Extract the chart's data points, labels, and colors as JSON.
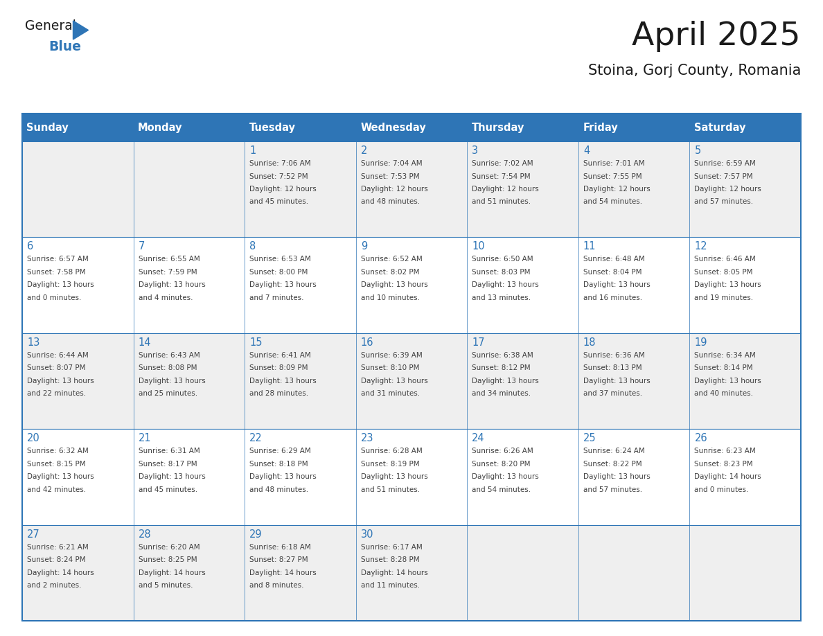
{
  "title": "April 2025",
  "subtitle": "Stoina, Gorj County, Romania",
  "header_bg": "#2E75B6",
  "header_text_color": "#FFFFFF",
  "row_bg_odd": "#EFEFEF",
  "row_bg_even": "#FFFFFF",
  "day_headers": [
    "Sunday",
    "Monday",
    "Tuesday",
    "Wednesday",
    "Thursday",
    "Friday",
    "Saturday"
  ],
  "cell_text_color": "#404040",
  "day_num_color": "#2E75B6",
  "grid_color": "#2E75B6",
  "weeks": [
    [
      {
        "day": "",
        "info": ""
      },
      {
        "day": "",
        "info": ""
      },
      {
        "day": "1",
        "info": "Sunrise: 7:06 AM\nSunset: 7:52 PM\nDaylight: 12 hours\nand 45 minutes."
      },
      {
        "day": "2",
        "info": "Sunrise: 7:04 AM\nSunset: 7:53 PM\nDaylight: 12 hours\nand 48 minutes."
      },
      {
        "day": "3",
        "info": "Sunrise: 7:02 AM\nSunset: 7:54 PM\nDaylight: 12 hours\nand 51 minutes."
      },
      {
        "day": "4",
        "info": "Sunrise: 7:01 AM\nSunset: 7:55 PM\nDaylight: 12 hours\nand 54 minutes."
      },
      {
        "day": "5",
        "info": "Sunrise: 6:59 AM\nSunset: 7:57 PM\nDaylight: 12 hours\nand 57 minutes."
      }
    ],
    [
      {
        "day": "6",
        "info": "Sunrise: 6:57 AM\nSunset: 7:58 PM\nDaylight: 13 hours\nand 0 minutes."
      },
      {
        "day": "7",
        "info": "Sunrise: 6:55 AM\nSunset: 7:59 PM\nDaylight: 13 hours\nand 4 minutes."
      },
      {
        "day": "8",
        "info": "Sunrise: 6:53 AM\nSunset: 8:00 PM\nDaylight: 13 hours\nand 7 minutes."
      },
      {
        "day": "9",
        "info": "Sunrise: 6:52 AM\nSunset: 8:02 PM\nDaylight: 13 hours\nand 10 minutes."
      },
      {
        "day": "10",
        "info": "Sunrise: 6:50 AM\nSunset: 8:03 PM\nDaylight: 13 hours\nand 13 minutes."
      },
      {
        "day": "11",
        "info": "Sunrise: 6:48 AM\nSunset: 8:04 PM\nDaylight: 13 hours\nand 16 minutes."
      },
      {
        "day": "12",
        "info": "Sunrise: 6:46 AM\nSunset: 8:05 PM\nDaylight: 13 hours\nand 19 minutes."
      }
    ],
    [
      {
        "day": "13",
        "info": "Sunrise: 6:44 AM\nSunset: 8:07 PM\nDaylight: 13 hours\nand 22 minutes."
      },
      {
        "day": "14",
        "info": "Sunrise: 6:43 AM\nSunset: 8:08 PM\nDaylight: 13 hours\nand 25 minutes."
      },
      {
        "day": "15",
        "info": "Sunrise: 6:41 AM\nSunset: 8:09 PM\nDaylight: 13 hours\nand 28 minutes."
      },
      {
        "day": "16",
        "info": "Sunrise: 6:39 AM\nSunset: 8:10 PM\nDaylight: 13 hours\nand 31 minutes."
      },
      {
        "day": "17",
        "info": "Sunrise: 6:38 AM\nSunset: 8:12 PM\nDaylight: 13 hours\nand 34 minutes."
      },
      {
        "day": "18",
        "info": "Sunrise: 6:36 AM\nSunset: 8:13 PM\nDaylight: 13 hours\nand 37 minutes."
      },
      {
        "day": "19",
        "info": "Sunrise: 6:34 AM\nSunset: 8:14 PM\nDaylight: 13 hours\nand 40 minutes."
      }
    ],
    [
      {
        "day": "20",
        "info": "Sunrise: 6:32 AM\nSunset: 8:15 PM\nDaylight: 13 hours\nand 42 minutes."
      },
      {
        "day": "21",
        "info": "Sunrise: 6:31 AM\nSunset: 8:17 PM\nDaylight: 13 hours\nand 45 minutes."
      },
      {
        "day": "22",
        "info": "Sunrise: 6:29 AM\nSunset: 8:18 PM\nDaylight: 13 hours\nand 48 minutes."
      },
      {
        "day": "23",
        "info": "Sunrise: 6:28 AM\nSunset: 8:19 PM\nDaylight: 13 hours\nand 51 minutes."
      },
      {
        "day": "24",
        "info": "Sunrise: 6:26 AM\nSunset: 8:20 PM\nDaylight: 13 hours\nand 54 minutes."
      },
      {
        "day": "25",
        "info": "Sunrise: 6:24 AM\nSunset: 8:22 PM\nDaylight: 13 hours\nand 57 minutes."
      },
      {
        "day": "26",
        "info": "Sunrise: 6:23 AM\nSunset: 8:23 PM\nDaylight: 14 hours\nand 0 minutes."
      }
    ],
    [
      {
        "day": "27",
        "info": "Sunrise: 6:21 AM\nSunset: 8:24 PM\nDaylight: 14 hours\nand 2 minutes."
      },
      {
        "day": "28",
        "info": "Sunrise: 6:20 AM\nSunset: 8:25 PM\nDaylight: 14 hours\nand 5 minutes."
      },
      {
        "day": "29",
        "info": "Sunrise: 6:18 AM\nSunset: 8:27 PM\nDaylight: 14 hours\nand 8 minutes."
      },
      {
        "day": "30",
        "info": "Sunrise: 6:17 AM\nSunset: 8:28 PM\nDaylight: 14 hours\nand 11 minutes."
      },
      {
        "day": "",
        "info": ""
      },
      {
        "day": "",
        "info": ""
      },
      {
        "day": "",
        "info": ""
      }
    ]
  ],
  "logo_text1": "General",
  "logo_text2": "Blue",
  "logo_triangle_color": "#2E75B6",
  "fig_width": 11.88,
  "fig_height": 9.18,
  "dpi": 100
}
